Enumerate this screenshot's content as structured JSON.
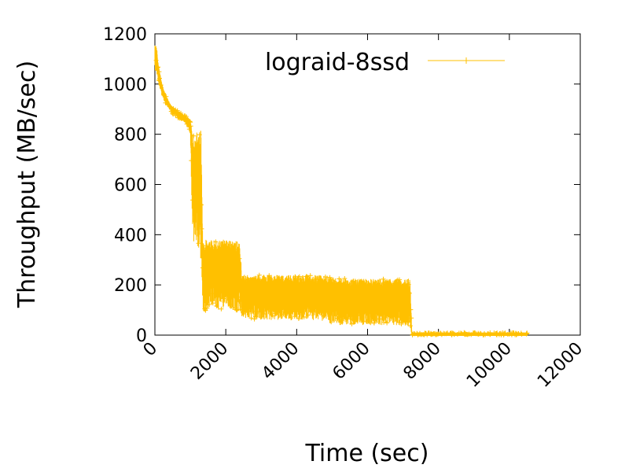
{
  "chart_data": {
    "type": "line",
    "xlabel": "Time (sec)",
    "ylabel": "Throughput (MB/sec)",
    "xlim": [
      0,
      12000
    ],
    "ylim": [
      0,
      1200
    ],
    "x_ticks": [
      "0",
      "2000",
      "4000",
      "6000",
      "8000",
      "10000",
      "12000"
    ],
    "y_ticks": [
      "0",
      "200",
      "400",
      "600",
      "800",
      "1000",
      "1200"
    ],
    "x_tick_values": [
      0,
      2000,
      4000,
      6000,
      8000,
      10000,
      12000
    ],
    "y_tick_values": [
      0,
      200,
      400,
      600,
      800,
      1000,
      1200
    ],
    "grid": false,
    "legend_position": "top-right",
    "series": [
      {
        "name": "lograid-8ssd",
        "color": "#ffc000",
        "marker": "plus",
        "x": [
          0,
          50,
          100,
          200,
          300,
          400,
          500,
          600,
          700,
          800,
          900,
          1000,
          1050,
          1100,
          1150,
          1200,
          1300,
          1350,
          1400,
          1600,
          1800,
          2000,
          2200,
          2400,
          2450,
          3000,
          3500,
          4000,
          4500,
          4900,
          5000,
          5500,
          6000,
          6500,
          7000,
          7200,
          7250,
          8000,
          9000,
          10000,
          10500
        ],
        "y_max": [
          1160,
          1150,
          1080,
          1000,
          960,
          930,
          910,
          900,
          890,
          880,
          870,
          860,
          820,
          810,
          815,
          810,
          815,
          380,
          380,
          380,
          380,
          380,
          380,
          370,
          240,
          240,
          240,
          240,
          240,
          240,
          230,
          225,
          225,
          225,
          225,
          225,
          10,
          10,
          10,
          10,
          10
        ],
        "y_min": [
          1050,
          1040,
          1000,
          950,
          920,
          900,
          880,
          870,
          860,
          850,
          840,
          800,
          450,
          350,
          380,
          340,
          300,
          100,
          90,
          120,
          100,
          110,
          100,
          90,
          70,
          60,
          60,
          60,
          60,
          50,
          40,
          40,
          40,
          40,
          35,
          35,
          0,
          0,
          0,
          0,
          0
        ]
      }
    ]
  }
}
